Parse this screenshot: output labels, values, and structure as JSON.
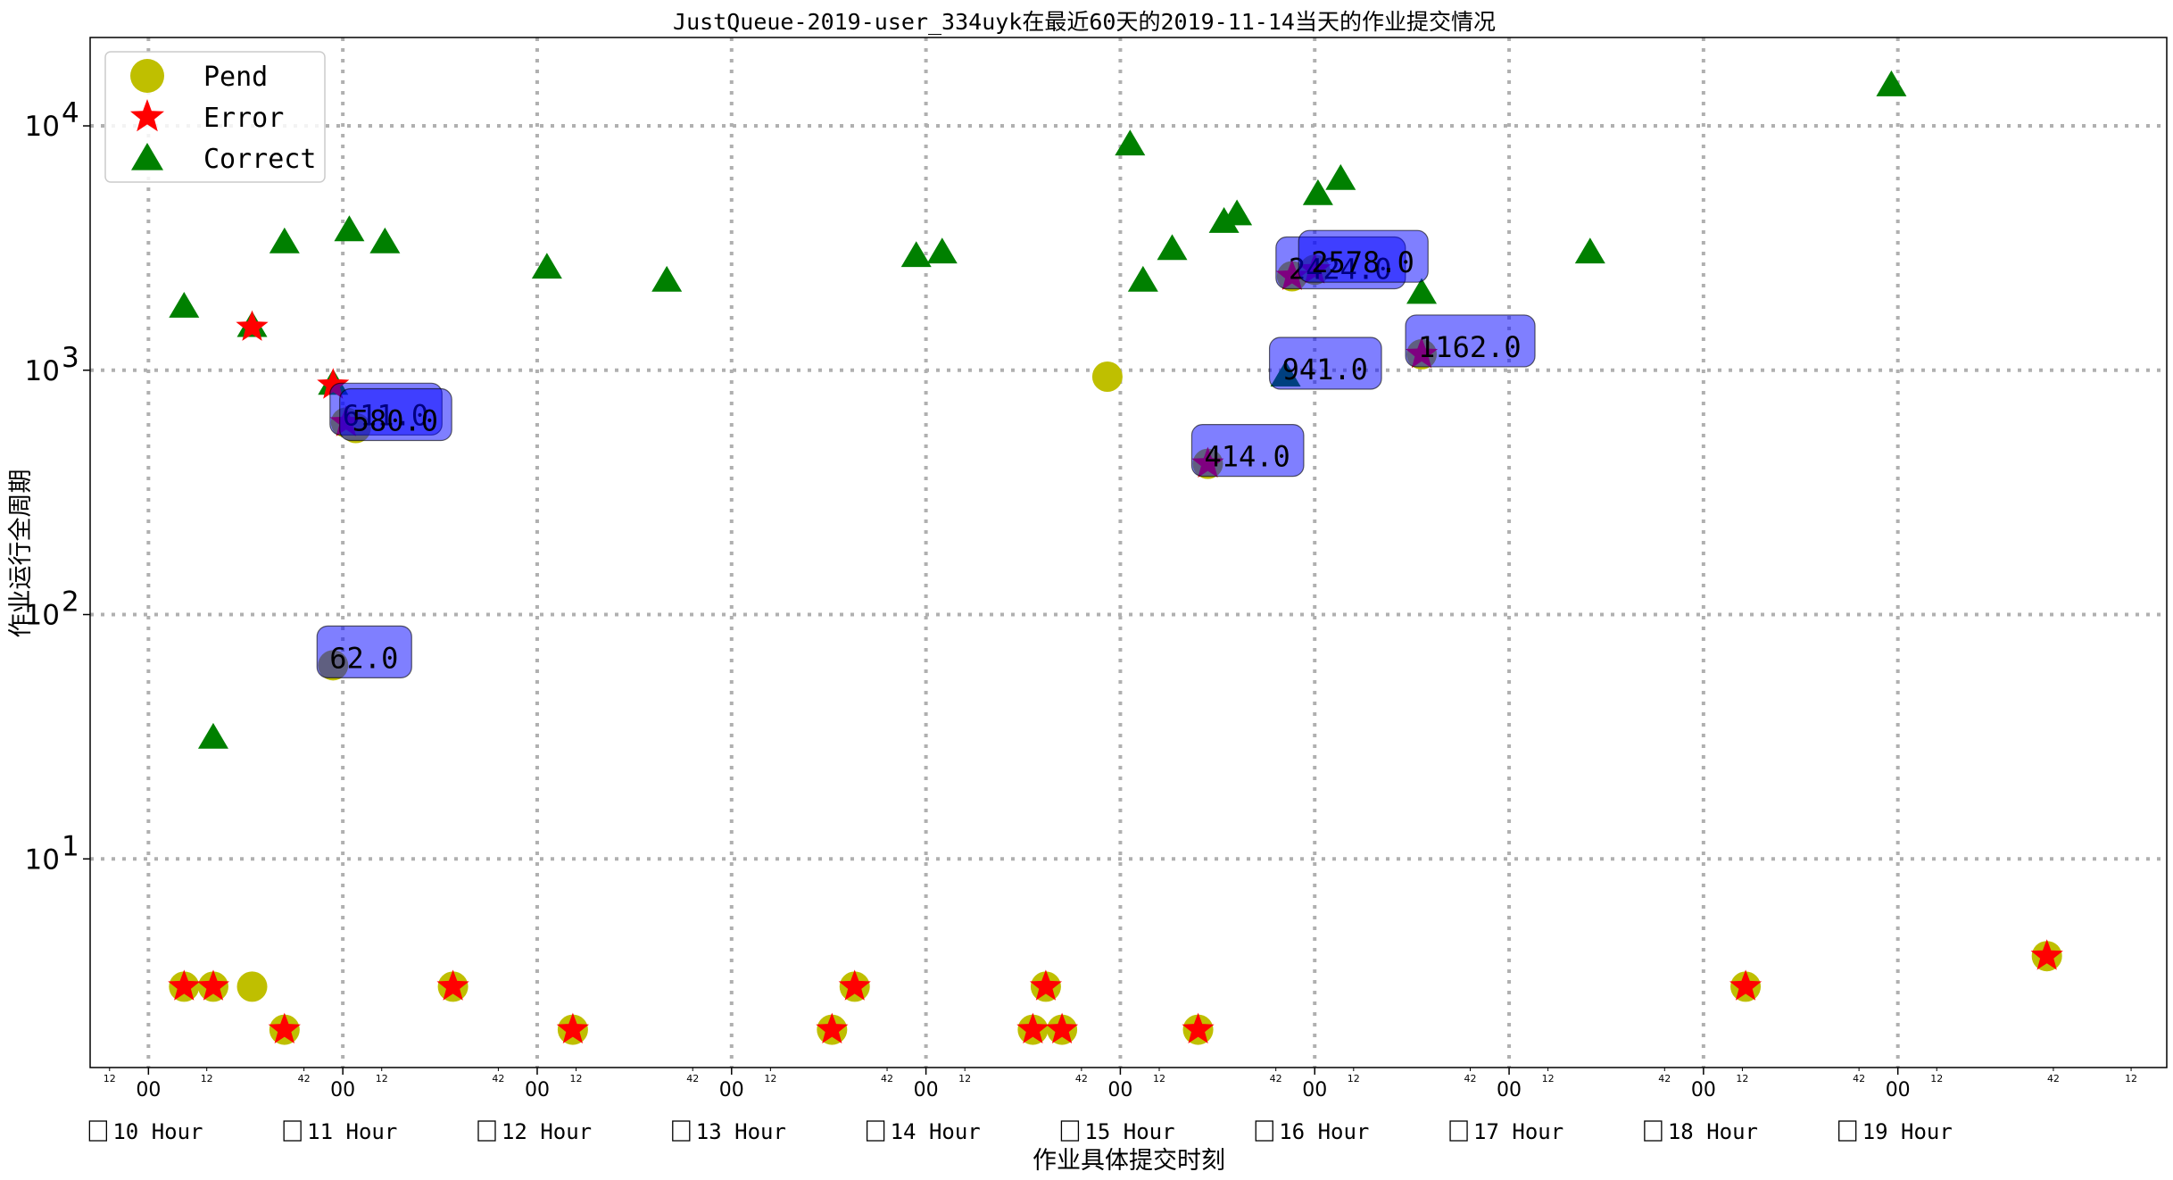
{
  "chart_data": {
    "type": "scatter",
    "title": "JustQueue-2019-user_334uyk在最近60天的2019-11-14当天的作业提交情况",
    "xlabel": "作业具体提交时刻",
    "ylabel": "作业运行全周期",
    "yscale": "log",
    "xlim_minutes": [
      582,
      1223
    ],
    "ylim": [
      1.4,
      23000
    ],
    "grid": true,
    "legend_position": "upper-left",
    "y_ticks": [
      {
        "value": 10,
        "label": "10",
        "exp": "1"
      },
      {
        "value": 100,
        "label": "10",
        "exp": "2"
      },
      {
        "value": 1000,
        "label": "10",
        "exp": "3"
      },
      {
        "value": 10000,
        "label": "10",
        "exp": "4"
      }
    ],
    "x_major_ticks": [
      {
        "minute": 600,
        "label": "00"
      },
      {
        "minute": 660,
        "label": "00"
      },
      {
        "minute": 720,
        "label": "00"
      },
      {
        "minute": 780,
        "label": "00"
      },
      {
        "minute": 840,
        "label": "00"
      },
      {
        "minute": 900,
        "label": "00"
      },
      {
        "minute": 960,
        "label": "00"
      },
      {
        "minute": 1020,
        "label": "00"
      },
      {
        "minute": 1080,
        "label": "00"
      },
      {
        "minute": 1140,
        "label": "00"
      }
    ],
    "x_minor_ticks": [
      {
        "minute": 588,
        "label": "12"
      },
      {
        "minute": 618,
        "label": "12"
      },
      {
        "minute": 648,
        "label": "42"
      },
      {
        "minute": 672,
        "label": "12"
      },
      {
        "minute": 708,
        "label": "42"
      },
      {
        "minute": 732,
        "label": "12"
      },
      {
        "minute": 768,
        "label": "42"
      },
      {
        "minute": 792,
        "label": "12"
      },
      {
        "minute": 828,
        "label": "42"
      },
      {
        "minute": 852,
        "label": "12"
      },
      {
        "minute": 888,
        "label": "42"
      },
      {
        "minute": 912,
        "label": "12"
      },
      {
        "minute": 948,
        "label": "42"
      },
      {
        "minute": 972,
        "label": "12"
      },
      {
        "minute": 1008,
        "label": "42"
      },
      {
        "minute": 1032,
        "label": "12"
      },
      {
        "minute": 1068,
        "label": "42"
      },
      {
        "minute": 1092,
        "label": "12"
      },
      {
        "minute": 1128,
        "label": "42"
      },
      {
        "minute": 1152,
        "label": "12"
      },
      {
        "minute": 1188,
        "label": "42"
      },
      {
        "minute": 1212,
        "label": "12"
      },
      {
        "minute": 1248,
        "label": "42"
      }
    ],
    "hour_labels": [
      {
        "minute": 600,
        "label": "10 Hour"
      },
      {
        "minute": 660,
        "label": "11 Hour"
      },
      {
        "minute": 720,
        "label": "12 Hour"
      },
      {
        "minute": 780,
        "label": "13 Hour"
      },
      {
        "minute": 840,
        "label": "14 Hour"
      },
      {
        "minute": 900,
        "label": "15 Hour"
      },
      {
        "minute": 960,
        "label": "16 Hour"
      },
      {
        "minute": 1020,
        "label": "17 Hour"
      },
      {
        "minute": 1080,
        "label": "18 Hour"
      },
      {
        "minute": 1140,
        "label": "19 Hour"
      }
    ],
    "legend": [
      {
        "key": "pend",
        "label": "Pend"
      },
      {
        "key": "error",
        "label": "Error"
      },
      {
        "key": "correct",
        "label": "Correct"
      }
    ],
    "colors": {
      "pend": "#bfbf00",
      "error": "#ff0000",
      "correct": "#008000",
      "annotation_box": "#0000ff",
      "grid": "#b0b0b0"
    },
    "series": {
      "pend": [
        {
          "x": 611,
          "y": 3
        },
        {
          "x": 620,
          "y": 3
        },
        {
          "x": 632,
          "y": 3
        },
        {
          "x": 642,
          "y": 2
        },
        {
          "x": 694,
          "y": 3
        },
        {
          "x": 731,
          "y": 2
        },
        {
          "x": 811,
          "y": 2
        },
        {
          "x": 818,
          "y": 3
        },
        {
          "x": 873,
          "y": 2
        },
        {
          "x": 877,
          "y": 3
        },
        {
          "x": 882,
          "y": 2
        },
        {
          "x": 924,
          "y": 2
        },
        {
          "x": 1093,
          "y": 3
        },
        {
          "x": 1186,
          "y": 4
        },
        {
          "x": 657,
          "y": 62
        },
        {
          "x": 661,
          "y": 611
        },
        {
          "x": 664,
          "y": 580
        },
        {
          "x": 896,
          "y": 941
        },
        {
          "x": 927,
          "y": 414
        },
        {
          "x": 953,
          "y": 2424
        },
        {
          "x": 960,
          "y": 2578
        },
        {
          "x": 993,
          "y": 1162
        }
      ],
      "error": [
        {
          "x": 611,
          "y": 3
        },
        {
          "x": 620,
          "y": 3
        },
        {
          "x": 642,
          "y": 2
        },
        {
          "x": 694,
          "y": 3
        },
        {
          "x": 731,
          "y": 2
        },
        {
          "x": 811,
          "y": 2
        },
        {
          "x": 818,
          "y": 3
        },
        {
          "x": 873,
          "y": 2
        },
        {
          "x": 877,
          "y": 3
        },
        {
          "x": 882,
          "y": 2
        },
        {
          "x": 924,
          "y": 2
        },
        {
          "x": 1093,
          "y": 3
        },
        {
          "x": 1186,
          "y": 4
        },
        {
          "x": 632,
          "y": 1500
        },
        {
          "x": 657,
          "y": 870
        },
        {
          "x": 661,
          "y": 611
        },
        {
          "x": 927,
          "y": 414
        },
        {
          "x": 953,
          "y": 2424
        },
        {
          "x": 960,
          "y": 2578
        },
        {
          "x": 993,
          "y": 1162
        }
      ],
      "correct": [
        {
          "x": 611,
          "y": 1800
        },
        {
          "x": 620,
          "y": 31
        },
        {
          "x": 632,
          "y": 1500
        },
        {
          "x": 642,
          "y": 3300
        },
        {
          "x": 657,
          "y": 870
        },
        {
          "x": 662,
          "y": 3700
        },
        {
          "x": 673,
          "y": 3300
        },
        {
          "x": 723,
          "y": 2600
        },
        {
          "x": 760,
          "y": 2300
        },
        {
          "x": 837,
          "y": 2900
        },
        {
          "x": 845,
          "y": 3000
        },
        {
          "x": 903,
          "y": 8300
        },
        {
          "x": 907,
          "y": 2300
        },
        {
          "x": 916,
          "y": 3100
        },
        {
          "x": 932,
          "y": 4000
        },
        {
          "x": 936,
          "y": 4300
        },
        {
          "x": 961,
          "y": 5200
        },
        {
          "x": 968,
          "y": 6000
        },
        {
          "x": 993,
          "y": 2050
        },
        {
          "x": 1045,
          "y": 3000
        },
        {
          "x": 1138,
          "y": 14500
        },
        {
          "x": 951,
          "y": 941
        }
      ]
    },
    "annotations": [
      {
        "x": 657,
        "y": 62,
        "label": "62.0"
      },
      {
        "x": 661,
        "y": 611,
        "label": "611.0"
      },
      {
        "x": 664,
        "y": 580,
        "label": "580.0"
      },
      {
        "x": 951,
        "y": 941,
        "label": "941.0"
      },
      {
        "x": 927,
        "y": 414,
        "label": "414.0"
      },
      {
        "x": 953,
        "y": 2424,
        "label": "2424.0"
      },
      {
        "x": 960,
        "y": 2578,
        "label": "2578.0"
      },
      {
        "x": 993,
        "y": 1162,
        "label": "1162.0"
      }
    ]
  }
}
